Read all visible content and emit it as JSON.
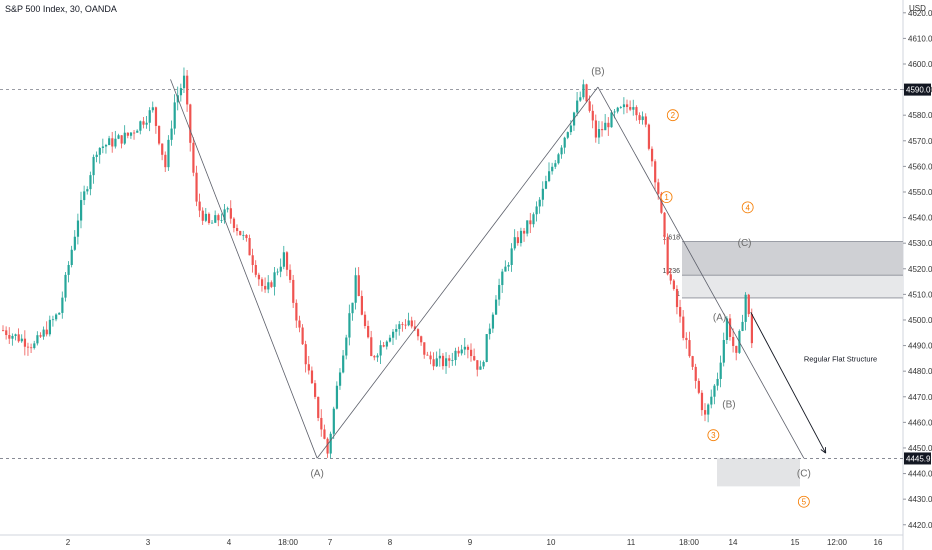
{
  "header": {
    "title": "S&P 500 Index, 30, OANDA",
    "currency": "USD"
  },
  "colors": {
    "up": "#26a69a",
    "down": "#ef5350",
    "wave_line": "#5d606b",
    "circle": "#f57c00",
    "badge_bg": "#131722",
    "fib_dark": "#cfd0d4",
    "fib_light": "#e7e8ea",
    "target_box": "#e3e4e6",
    "dashed": "#787b86"
  },
  "chart_data": {
    "type": "candlestick",
    "title": "S&P 500 Index, 30, OANDA",
    "ylabel": "USD",
    "ylim": [
      4416,
      4625
    ],
    "price_ticks": [
      "4620.0",
      "4610.0",
      "4600.0",
      "4590.0",
      "4580.0",
      "4570.0",
      "4560.0",
      "4550.0",
      "4540.0",
      "4530.0",
      "4520.0",
      "4510.0",
      "4500.0",
      "4490.0",
      "4480.0",
      "4470.0",
      "4460.0",
      "4450.0",
      "4440.0",
      "4430.0",
      "4420.0"
    ],
    "time_ticks": [
      "2",
      "3",
      "4",
      "18:00",
      "7",
      "8",
      "9",
      "10",
      "11",
      "18:00",
      "14",
      "15",
      "12:00",
      "16"
    ],
    "price_badges": [
      {
        "label": "4590.0",
        "price": 4590.0
      },
      {
        "label": "4445.9",
        "price": 4445.9
      }
    ],
    "horizontal_levels": [
      4590.0,
      4445.9
    ],
    "price_path": [
      {
        "bar": 0,
        "price": 4496
      },
      {
        "bar": 10,
        "price": 4490
      },
      {
        "bar": 18,
        "price": 4503
      },
      {
        "bar": 24,
        "price": 4540
      },
      {
        "bar": 30,
        "price": 4567
      },
      {
        "bar": 40,
        "price": 4572
      },
      {
        "bar": 48,
        "price": 4582
      },
      {
        "bar": 52,
        "price": 4560
      },
      {
        "bar": 55,
        "price": 4585
      },
      {
        "bar": 58,
        "price": 4594
      },
      {
        "bar": 62,
        "price": 4545
      },
      {
        "bar": 66,
        "price": 4537
      },
      {
        "bar": 72,
        "price": 4542
      },
      {
        "bar": 78,
        "price": 4530
      },
      {
        "bar": 84,
        "price": 4510
      },
      {
        "bar": 90,
        "price": 4525
      },
      {
        "bar": 96,
        "price": 4490
      },
      {
        "bar": 100,
        "price": 4468
      },
      {
        "bar": 104,
        "price": 4448
      },
      {
        "bar": 108,
        "price": 4482
      },
      {
        "bar": 113,
        "price": 4515
      },
      {
        "bar": 118,
        "price": 4485
      },
      {
        "bar": 124,
        "price": 4495
      },
      {
        "bar": 130,
        "price": 4500
      },
      {
        "bar": 136,
        "price": 4485
      },
      {
        "bar": 142,
        "price": 4483
      },
      {
        "bar": 148,
        "price": 4492
      },
      {
        "bar": 153,
        "price": 4480
      },
      {
        "bar": 158,
        "price": 4510
      },
      {
        "bar": 164,
        "price": 4530
      },
      {
        "bar": 170,
        "price": 4540
      },
      {
        "bar": 176,
        "price": 4560
      },
      {
        "bar": 182,
        "price": 4578
      },
      {
        "bar": 186,
        "price": 4590
      },
      {
        "bar": 190,
        "price": 4572
      },
      {
        "bar": 196,
        "price": 4580
      },
      {
        "bar": 202,
        "price": 4585
      },
      {
        "bar": 206,
        "price": 4575
      },
      {
        "bar": 210,
        "price": 4550
      },
      {
        "bar": 213,
        "price": 4520
      },
      {
        "bar": 216,
        "price": 4505
      },
      {
        "bar": 220,
        "price": 4485
      },
      {
        "bar": 225,
        "price": 4462
      },
      {
        "bar": 229,
        "price": 4478
      },
      {
        "bar": 232,
        "price": 4500
      },
      {
        "bar": 235,
        "price": 4485
      },
      {
        "bar": 238,
        "price": 4510
      },
      {
        "bar": 240,
        "price": 4492
      }
    ],
    "wave_lines": [
      [
        {
          "bar": 54,
          "price": 4594
        },
        {
          "bar": 101,
          "price": 4446
        }
      ],
      [
        {
          "bar": 101,
          "price": 4446
        },
        {
          "bar": 191,
          "price": 4591
        }
      ],
      [
        {
          "bar": 191,
          "price": 4591
        },
        {
          "bar": 257,
          "price": 4446
        }
      ]
    ],
    "projection_arrow": [
      {
        "bar": 240,
        "price": 4503
      },
      {
        "bar": 264,
        "price": 4448
      }
    ],
    "wave_labels": [
      {
        "text": "(A)",
        "bar": 101,
        "price": 4440
      },
      {
        "text": "(B)",
        "bar": 191,
        "price": 4597
      },
      {
        "text": "(A)",
        "bar": 230,
        "price": 4501
      },
      {
        "text": "(B)",
        "bar": 233,
        "price": 4467
      },
      {
        "text": "(C)",
        "bar": 238,
        "price": 4530
      },
      {
        "text": "(C)",
        "bar": 257,
        "price": 4440
      }
    ],
    "circled_waves": [
      {
        "text": "2",
        "bar": 215,
        "price": 4580
      },
      {
        "text": "1",
        "bar": 213,
        "price": 4548
      },
      {
        "text": "4",
        "bar": 239,
        "price": 4544
      },
      {
        "text": "3",
        "bar": 228,
        "price": 4455
      },
      {
        "text": "5",
        "bar": 257,
        "price": 4429
      }
    ],
    "fib_levels": [
      {
        "label": "1.618",
        "price": 4530.7
      },
      {
        "label": "1.236",
        "price": 4517.5
      },
      {
        "label": "1",
        "price": 4508.6
      }
    ],
    "target_zone": {
      "price_top": 4446,
      "price_bottom": 4435
    },
    "annotations": [
      {
        "text": "Regular Flat Structure",
        "bar": 257,
        "price": 4485
      }
    ]
  }
}
